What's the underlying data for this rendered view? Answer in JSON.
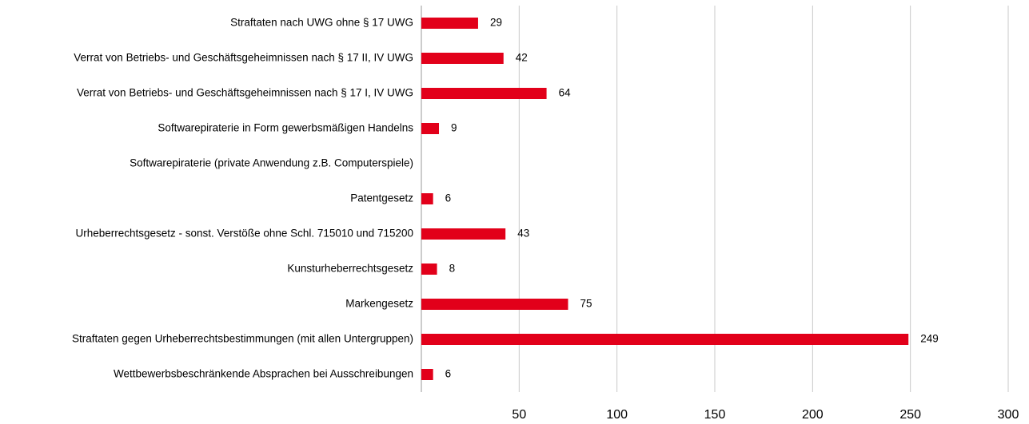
{
  "chart_data": {
    "type": "bar",
    "orientation": "horizontal",
    "categories": [
      "Straftaten nach UWG ohne § 17 UWG",
      "Verrat von Betriebs- und Geschäftsgeheimnissen nach § 17 II, IV UWG",
      "Verrat von Betriebs- und Geschäftsgeheimnissen nach § 17 I, IV UWG",
      "Softwarepiraterie in Form gewerbsmäßigen Handelns",
      "Softwarepiraterie (private Anwendung z.B. Computerspiele)",
      "Patentgesetz",
      "Urheberrechtsgesetz - sonst. Verstöße ohne Schl. 715010 und 715200",
      "Kunsturheberrechtsgesetz",
      "Markengesetz",
      "Straftaten gegen Urheberrechtsbestimmungen (mit allen Untergruppen)",
      "Wettbewerbsbeschränkende Absprachen bei Ausschreibungen"
    ],
    "values": [
      29,
      42,
      64,
      9,
      null,
      6,
      43,
      8,
      75,
      249,
      6
    ],
    "color": "#e2001a",
    "xlim": [
      0,
      300
    ],
    "xticks": [
      50,
      100,
      150,
      200,
      250,
      300
    ],
    "grid": true
  }
}
